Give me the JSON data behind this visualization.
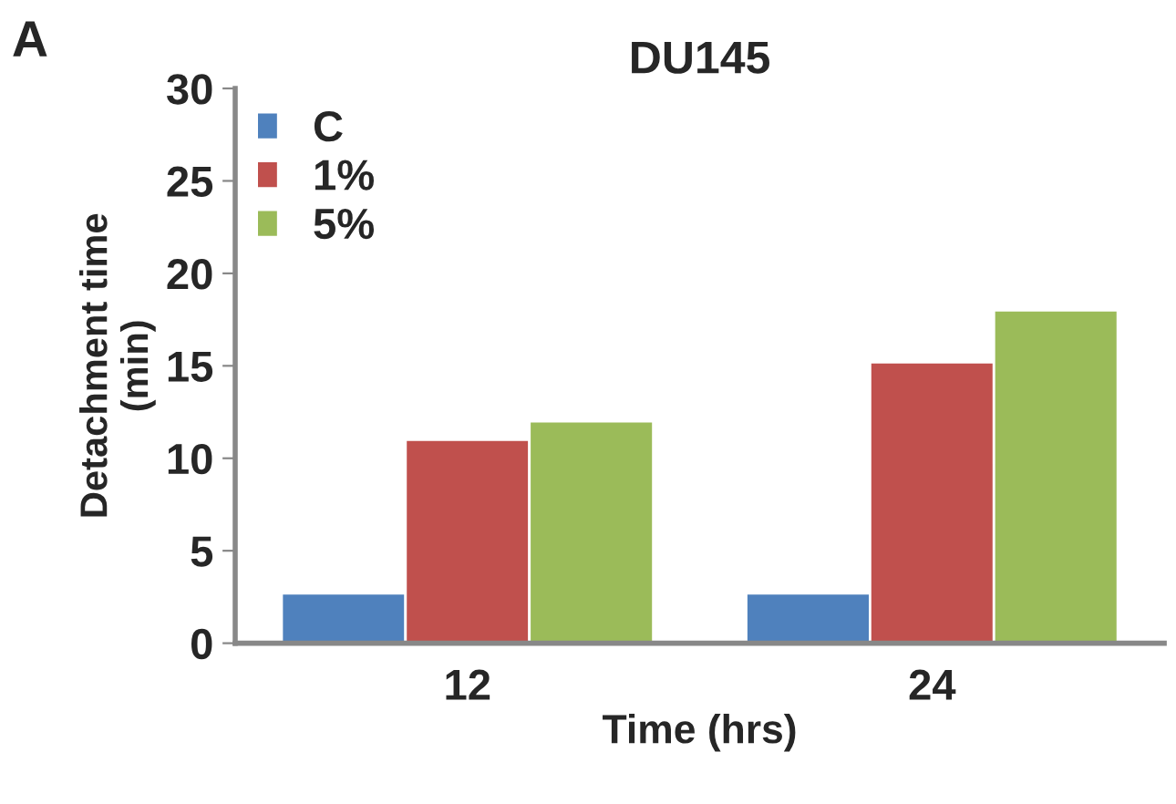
{
  "chart_data": {
    "type": "bar",
    "title": "DU145",
    "xlabel": "Time (hrs)",
    "ylabel": "Detachment time\n(min)",
    "annotations": [
      "A"
    ],
    "categories": [
      "12",
      "24"
    ],
    "series": [
      {
        "name": "C",
        "color": "#4f81bd",
        "values": [
          2.7,
          2.7
        ]
      },
      {
        "name": "1%",
        "color": "#c0504d",
        "values": [
          11,
          15.2
        ]
      },
      {
        "name": "5%",
        "color": "#9bbb59",
        "values": [
          12,
          18
        ]
      }
    ],
    "ylim": [
      0,
      30
    ],
    "yticks": [
      0,
      5,
      10,
      15,
      20,
      25,
      30
    ],
    "grid": false,
    "legend": "top left"
  }
}
